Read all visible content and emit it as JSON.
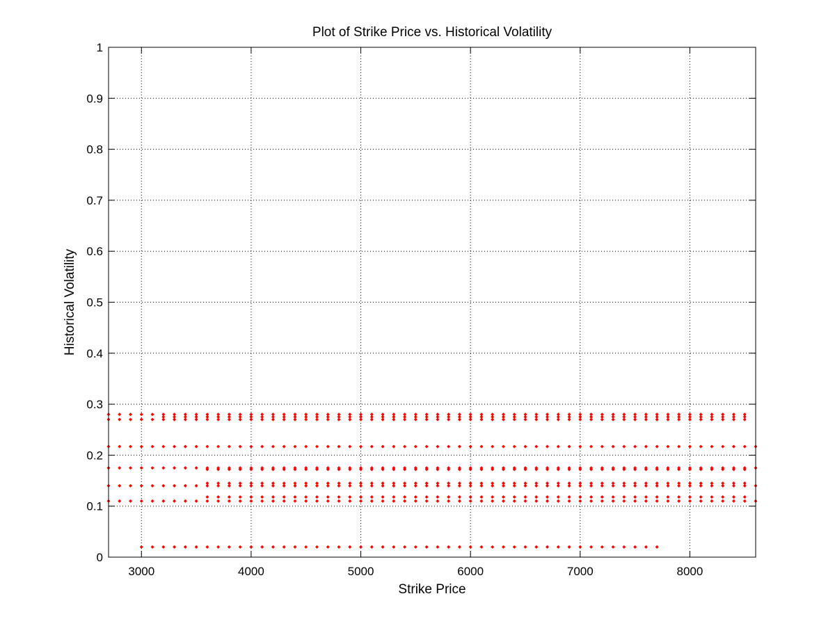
{
  "chart_data": {
    "type": "scatter",
    "title": "Plot of Strike Price vs. Historical Volatility",
    "xlabel": "Strike Price",
    "ylabel": "Historical Volatility",
    "xlim": [
      2700,
      8600
    ],
    "ylim": [
      0,
      1
    ],
    "xticks": [
      3000,
      4000,
      5000,
      6000,
      7000,
      8000
    ],
    "yticks": [
      0,
      0.1,
      0.2,
      0.3,
      0.4,
      0.5,
      0.6,
      0.7,
      0.8,
      0.9,
      1
    ],
    "grid": true,
    "marker_color": "#ff0000",
    "series": [
      {
        "x_start": 2700,
        "x_end": 8600,
        "x_step": 100,
        "y": [
          0.11,
          0.14,
          0.175,
          0.217,
          0.27
        ],
        "note_x_range": "strike prices every 100"
      }
    ],
    "points": {
      "band_low": {
        "y": 0.02,
        "x_start": 3000,
        "x_end": 7700,
        "x_step": 100
      },
      "bands_full": {
        "y": [
          0.11,
          0.14,
          0.175,
          0.217
        ],
        "x_start": 2700,
        "x_end": 8600,
        "x_step": 100
      },
      "band_high": {
        "y": [
          0.27,
          0.28
        ],
        "x_start": 2700,
        "x_end": 8500,
        "x_step": 100
      },
      "band_extra": {
        "y": [
          0.118,
          0.145,
          0.172
        ],
        "x_start": 3600,
        "x_end": 8500,
        "x_step": 100
      },
      "band_top": {
        "y": [
          0.275
        ],
        "x_start": 3200,
        "x_end": 8500,
        "x_step": 100
      }
    }
  }
}
